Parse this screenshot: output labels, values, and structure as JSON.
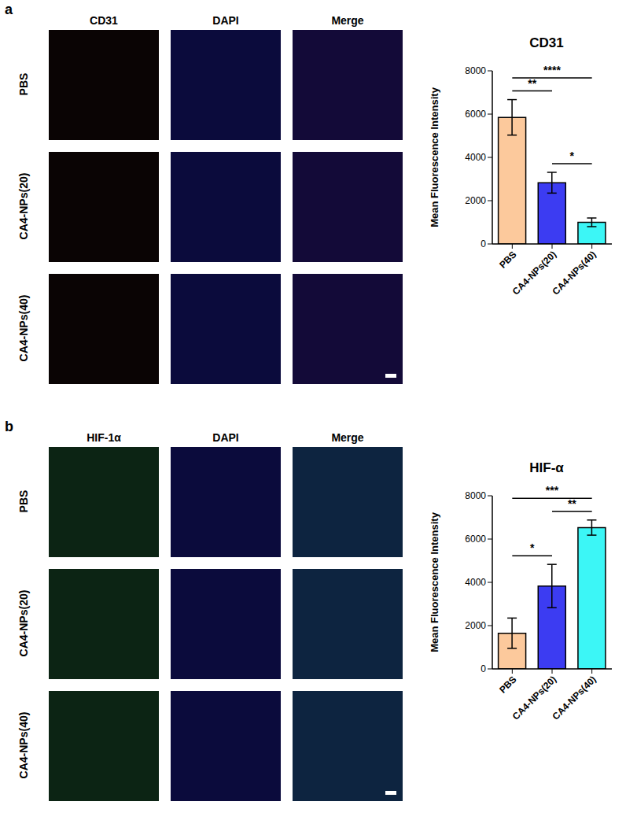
{
  "chart_data": [
    {
      "type": "bar",
      "title": "CD31",
      "y_label": "Mean Fluorescence Intensity",
      "categories": [
        "PBS",
        "CA4-NPs(20)",
        "CA4-NPs(40)"
      ],
      "values": [
        5850,
        2830,
        1000
      ],
      "errors": [
        820,
        480,
        200
      ],
      "colors": [
        "#fcc99c",
        "#3c3cf2",
        "#3cf6f6"
      ],
      "ylim": [
        0,
        8000
      ],
      "yticks": [
        0,
        2000,
        4000,
        6000,
        8000
      ],
      "grid": false,
      "annotations": [
        {
          "from": "PBS",
          "to": "CA4-NPs(20)",
          "label": "**"
        },
        {
          "from": "PBS",
          "to": "CA4-NPs(40)",
          "label": "****"
        },
        {
          "from": "CA4-NPs(20)",
          "to": "CA4-NPs(40)",
          "label": "*"
        }
      ]
    },
    {
      "type": "bar",
      "title": "HIF-α",
      "y_label": "Mean Fluorescence Intensity",
      "categories": [
        "PBS",
        "CA4-NPs(20)",
        "CA4-NPs(40)"
      ],
      "values": [
        1650,
        3830,
        6530
      ],
      "errors": [
        700,
        1000,
        350
      ],
      "colors": [
        "#fcc99c",
        "#3c3cf2",
        "#3cf6f6"
      ],
      "ylim": [
        0,
        8000
      ],
      "yticks": [
        0,
        2000,
        4000,
        6000,
        8000
      ],
      "grid": false,
      "annotations": [
        {
          "from": "PBS",
          "to": "CA4-NPs(20)",
          "label": "*"
        },
        {
          "from": "PBS",
          "to": "CA4-NPs(40)",
          "label": "***"
        },
        {
          "from": "CA4-NPs(20)",
          "to": "CA4-NPs(40)",
          "label": "**"
        }
      ]
    }
  ],
  "figure": {
    "panels": [
      {
        "label": "a",
        "columns": [
          "CD31",
          "DAPI",
          "Merge"
        ],
        "rows": [
          "PBS",
          "CA4-NPs(20)",
          "CA4-NPs(40)"
        ]
      },
      {
        "label": "b",
        "columns": [
          "HIF-1α",
          "DAPI",
          "Merge"
        ],
        "rows": [
          "PBS",
          "CA4-NPs(20)",
          "CA4-NPs(40)"
        ]
      }
    ]
  }
}
